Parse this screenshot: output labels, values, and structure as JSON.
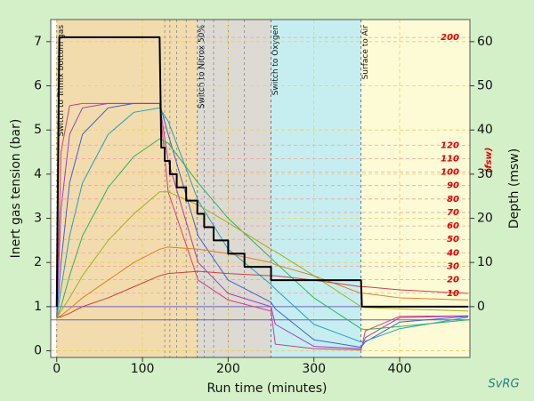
{
  "chart_data": {
    "type": "line",
    "xlabel": "Run time (minutes)",
    "ylabel": "Inert gas tension (bar)",
    "y2label": "Depth  (msw)",
    "y3label": "(fsw)",
    "signature": "SvRG",
    "grid": true,
    "xlim": [
      -7,
      482
    ],
    "xticks": [
      0,
      100,
      200,
      300,
      400
    ],
    "ylim": [
      -0.15,
      7.5
    ],
    "yticks": [
      0,
      1,
      2,
      3,
      4,
      5,
      6,
      7
    ],
    "y2lim": [
      -11.5,
      65
    ],
    "y2ticks": [
      0,
      10,
      20,
      30,
      40,
      50,
      60
    ],
    "y3lim": [
      -37.7,
      213.3
    ],
    "y3ticks": [
      10,
      20,
      30,
      40,
      50,
      60,
      70,
      80,
      90,
      100,
      110,
      120,
      200
    ],
    "phases": [
      {
        "start": 0,
        "end": 164,
        "color": "#f2dcae",
        "label": "Switch to Trimix bottom gas"
      },
      {
        "start": 164,
        "end": 250,
        "color": "#dcdad2",
        "label": "Switch to Nitrox 50%"
      },
      {
        "start": 250,
        "end": 355,
        "color": "#c6eef0",
        "label": "Switch to Oxygen"
      },
      {
        "start": 355,
        "end": 482,
        "color": "#fdfbd6",
        "label": "Surface to Air"
      }
    ],
    "hlines": [
      {
        "value": 1,
        "color": "#7060c0"
      },
      {
        "value": 0.7,
        "color": "#7060c0"
      }
    ],
    "x": [
      0,
      5,
      15,
      30,
      60,
      90,
      120,
      130,
      165,
      200,
      250,
      255,
      300,
      355,
      360,
      400,
      480
    ],
    "series": [
      {
        "color": "#d04080",
        "values": [
          0.75,
          4.5,
          5.55,
          5.6,
          5.6,
          5.6,
          5.6,
          3.6,
          1.6,
          1.15,
          0.9,
          0.15,
          0.05,
          0.02,
          0.45,
          0.78,
          0.79
        ]
      },
      {
        "color": "#a040c0",
        "values": [
          0.75,
          3.2,
          4.9,
          5.5,
          5.6,
          5.6,
          5.6,
          4.3,
          2.0,
          1.3,
          1.0,
          0.6,
          0.1,
          0.05,
          0.3,
          0.75,
          0.79
        ]
      },
      {
        "color": "#4060d0",
        "values": [
          0.75,
          2.0,
          3.8,
          4.9,
          5.5,
          5.6,
          5.6,
          4.9,
          2.6,
          1.6,
          1.1,
          0.95,
          0.25,
          0.08,
          0.2,
          0.65,
          0.78
        ]
      },
      {
        "color": "#20a0c0",
        "values": [
          0.75,
          1.4,
          2.6,
          3.8,
          4.9,
          5.4,
          5.5,
          5.2,
          3.4,
          2.3,
          1.5,
          1.4,
          0.6,
          0.2,
          0.22,
          0.5,
          0.76
        ]
      },
      {
        "color": "#30b060",
        "values": [
          0.75,
          1.0,
          1.7,
          2.6,
          3.7,
          4.4,
          4.8,
          4.7,
          3.8,
          3.0,
          2.1,
          2.0,
          1.2,
          0.5,
          0.48,
          0.55,
          0.7
        ]
      },
      {
        "color": "#a0b020",
        "values": [
          0.75,
          0.9,
          1.2,
          1.7,
          2.5,
          3.1,
          3.6,
          3.6,
          3.3,
          2.9,
          2.3,
          2.25,
          1.7,
          1.0,
          0.98,
          0.95,
          0.9
        ]
      },
      {
        "color": "#e08020",
        "values": [
          0.75,
          0.8,
          0.95,
          1.2,
          1.6,
          2.0,
          2.3,
          2.35,
          2.3,
          2.2,
          2.0,
          1.95,
          1.7,
          1.3,
          1.3,
          1.2,
          1.15
        ]
      },
      {
        "color": "#d04040",
        "values": [
          0.75,
          0.77,
          0.85,
          1.0,
          1.2,
          1.45,
          1.7,
          1.75,
          1.8,
          1.75,
          1.7,
          1.7,
          1.6,
          1.45,
          1.45,
          1.38,
          1.3
        ]
      }
    ],
    "profile": {
      "color": "#000000",
      "axis": "y2",
      "x": [
        0,
        3,
        120,
        122,
        126,
        126,
        132,
        132,
        140,
        140,
        151,
        151,
        164,
        164,
        172,
        172,
        183,
        183,
        200,
        200,
        219,
        219,
        250,
        250,
        355,
        356,
        480
      ],
      "values": [
        0,
        61,
        61,
        36,
        36,
        33,
        33,
        30,
        30,
        27,
        27,
        24,
        24,
        21,
        21,
        18,
        18,
        15,
        15,
        12,
        12,
        9,
        9,
        6,
        6,
        0,
        0
      ]
    }
  }
}
